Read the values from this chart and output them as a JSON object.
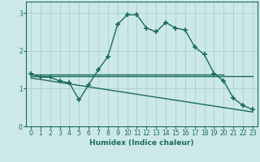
{
  "title": "",
  "xlabel": "Humidex (Indice chaleur)",
  "xlim": [
    -0.5,
    23.5
  ],
  "ylim": [
    0,
    3.3
  ],
  "yticks": [
    0,
    1,
    2,
    3
  ],
  "xticks": [
    0,
    1,
    2,
    3,
    4,
    5,
    6,
    7,
    8,
    9,
    10,
    11,
    12,
    13,
    14,
    15,
    16,
    17,
    18,
    19,
    20,
    21,
    22,
    23
  ],
  "bg_color": "#cce8e8",
  "line_color": "#1a6b5a",
  "grid_color": "#aacfcf",
  "curve1_x": [
    0,
    1,
    2,
    3,
    4,
    5,
    6,
    7,
    8,
    9,
    10,
    11,
    12,
    13,
    14,
    15,
    16,
    17,
    18,
    19,
    20,
    21,
    22,
    23
  ],
  "curve1_y": [
    1.4,
    1.3,
    1.3,
    1.2,
    1.15,
    0.7,
    1.1,
    1.5,
    1.85,
    2.7,
    2.95,
    2.95,
    2.6,
    2.5,
    2.75,
    2.6,
    2.55,
    2.1,
    1.9,
    1.4,
    1.2,
    0.75,
    0.55,
    0.45
  ],
  "line2_x": [
    0,
    20
  ],
  "line2_y": [
    1.38,
    1.38
  ],
  "line3_x": [
    0,
    23
  ],
  "line3_y": [
    1.32,
    1.32
  ],
  "line4_x": [
    0,
    23
  ],
  "line4_y": [
    1.28,
    0.38
  ]
}
